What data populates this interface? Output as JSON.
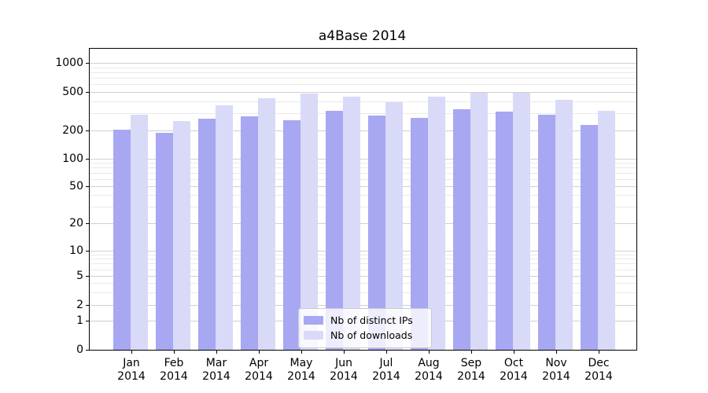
{
  "chart_data": {
    "type": "bar",
    "title": "a4Base 2014",
    "categories": [
      "Jan 2014",
      "Feb 2014",
      "Mar 2014",
      "Apr 2014",
      "May 2014",
      "Jun 2014",
      "Jul 2014",
      "Aug 2014",
      "Sep 2014",
      "Oct 2014",
      "Nov 2014",
      "Dec 2014"
    ],
    "series": [
      {
        "name": "Nb of distinct IPs",
        "color": "#a7a7f2",
        "values": [
          205,
          190,
          265,
          280,
          255,
          320,
          285,
          270,
          330,
          315,
          290,
          230
        ]
      },
      {
        "name": "Nb of downloads",
        "color": "#d9d9f8",
        "values": [
          290,
          250,
          365,
          430,
          480,
          445,
          390,
          445,
          490,
          490,
          415,
          320
        ]
      }
    ],
    "yscale": "symlog",
    "y_ticks": [
      1000,
      500,
      200,
      100,
      50,
      20,
      10,
      5,
      2,
      1,
      0
    ],
    "y_minor_ticks": [
      3,
      4,
      6,
      7,
      8,
      9,
      30,
      40,
      60,
      70,
      80,
      90,
      300,
      400,
      600,
      700,
      800,
      900
    ],
    "ylim": [
      0,
      1400
    ],
    "xlabel": "",
    "ylabel": "",
    "grid": true,
    "legend_position": "lower center",
    "legend_entries": [
      "Nb of distinct IPs",
      "Nb of downloads"
    ]
  },
  "colors": {
    "distinct_ips_bar": "#a7a7f2",
    "downloads_bar": "#d9d9f8",
    "major_grid": "#d0d0d0",
    "minor_grid": "#e9e9e9",
    "axis_spine": "#000000",
    "legend_border": "#cccccc",
    "background": "#ffffff"
  }
}
